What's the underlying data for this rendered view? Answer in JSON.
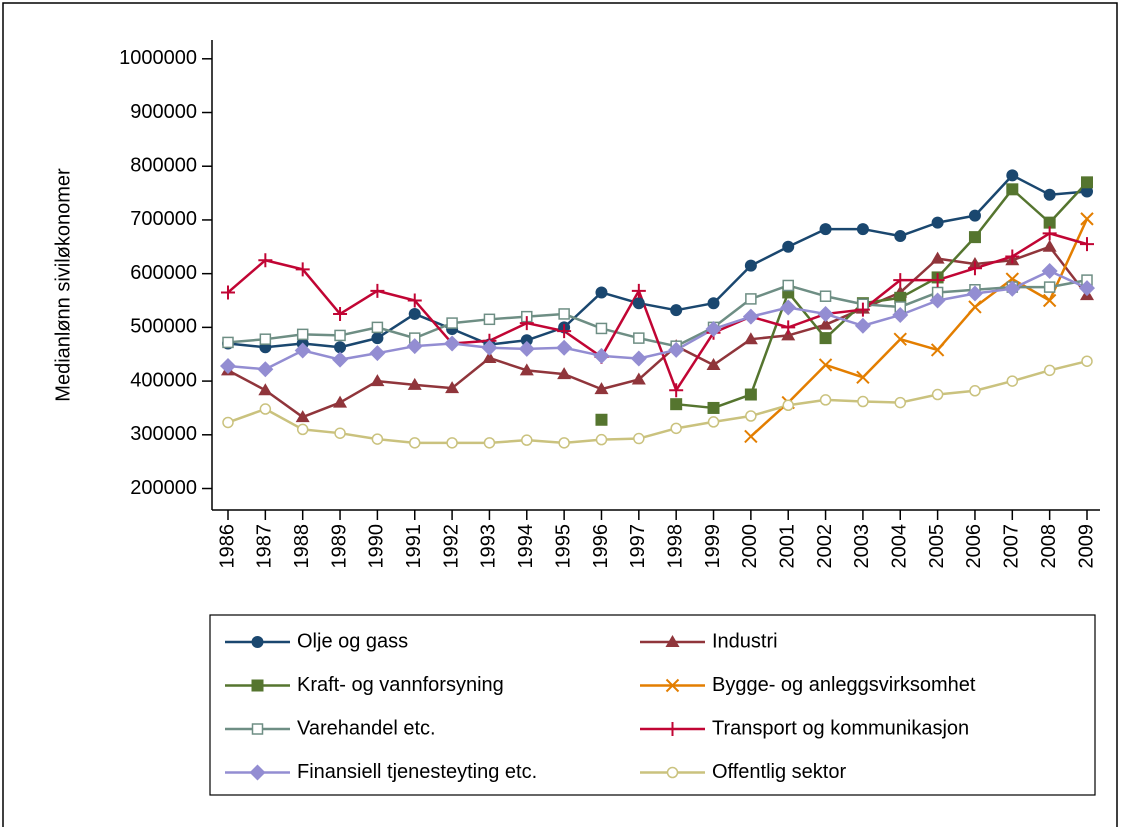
{
  "chart_data": {
    "type": "line",
    "ylabel": "Medianlønn siviløkonomer",
    "categories": [
      "1986",
      "1987",
      "1988",
      "1989",
      "1990",
      "1991",
      "1992",
      "1993",
      "1994",
      "1995",
      "1996",
      "1997",
      "1998",
      "1999",
      "2000",
      "2001",
      "2002",
      "2003",
      "2004",
      "2005",
      "2006",
      "2007",
      "2008",
      "2009"
    ],
    "ylim": [
      160000,
      1035000
    ],
    "yticks": [
      200000,
      300000,
      400000,
      500000,
      600000,
      700000,
      800000,
      900000,
      1000000
    ],
    "series": [
      {
        "name": "Olje og gass",
        "color": "#1a476f",
        "marker": "circle",
        "values": [
          470000,
          463000,
          470000,
          463000,
          480000,
          525000,
          497000,
          468000,
          476000,
          500000,
          565000,
          545000,
          532000,
          545000,
          615000,
          650000,
          683000,
          683000,
          670000,
          695000,
          708000,
          783000,
          747000,
          753000
        ]
      },
      {
        "name": "Industri",
        "color": "#90353b",
        "marker": "triangle",
        "values": [
          420000,
          383000,
          333000,
          360000,
          400000,
          393000,
          387000,
          443000,
          420000,
          413000,
          385000,
          403000,
          465000,
          430000,
          478000,
          485000,
          505000,
          535000,
          565000,
          628000,
          618000,
          625000,
          650000,
          560000
        ]
      },
      {
        "name": "Kraft- og vannforsyning",
        "color": "#55752f",
        "marker": "square",
        "values": [
          null,
          null,
          null,
          null,
          null,
          null,
          null,
          null,
          null,
          null,
          328000,
          null,
          357000,
          350000,
          375000,
          565000,
          480000,
          545000,
          555000,
          593000,
          668000,
          757000,
          695000,
          770000
        ]
      },
      {
        "name": "Bygge- og anleggsvirksomhet",
        "color": "#e37e00",
        "marker": "x",
        "values": [
          null,
          null,
          null,
          null,
          null,
          null,
          null,
          null,
          null,
          null,
          null,
          null,
          null,
          null,
          297000,
          360000,
          430000,
          407000,
          478000,
          458000,
          538000,
          590000,
          550000,
          702000
        ]
      },
      {
        "name": "Varehandel etc.",
        "color": "#6e8e84",
        "marker": "hollow-square",
        "values": [
          472000,
          478000,
          487000,
          485000,
          500000,
          480000,
          508000,
          515000,
          520000,
          525000,
          498000,
          480000,
          465000,
          500000,
          553000,
          578000,
          558000,
          543000,
          538000,
          565000,
          570000,
          575000,
          575000,
          588000
        ]
      },
      {
        "name": "Transport og kommunikasjon",
        "color": "#c10534",
        "marker": "plus",
        "values": [
          565000,
          625000,
          608000,
          525000,
          568000,
          550000,
          470000,
          475000,
          508000,
          493000,
          445000,
          568000,
          383000,
          490000,
          520000,
          500000,
          525000,
          533000,
          588000,
          588000,
          610000,
          632000,
          675000,
          655000
        ]
      },
      {
        "name": "Finansiell tjenesteyting etc.",
        "color": "#938dd2",
        "marker": "diamond",
        "values": [
          428000,
          422000,
          457000,
          440000,
          452000,
          465000,
          470000,
          462000,
          460000,
          462000,
          447000,
          442000,
          458000,
          497000,
          520000,
          537000,
          525000,
          503000,
          523000,
          550000,
          563000,
          572000,
          605000,
          573000
        ]
      },
      {
        "name": "Offentlig sektor",
        "color": "#cac27e",
        "marker": "hollow-circle",
        "values": [
          323000,
          348000,
          310000,
          303000,
          292000,
          285000,
          285000,
          285000,
          290000,
          285000,
          291000,
          293000,
          312000,
          324000,
          335000,
          355000,
          365000,
          362000,
          360000,
          375000,
          382000,
          400000,
          420000,
          437000
        ]
      }
    ]
  }
}
